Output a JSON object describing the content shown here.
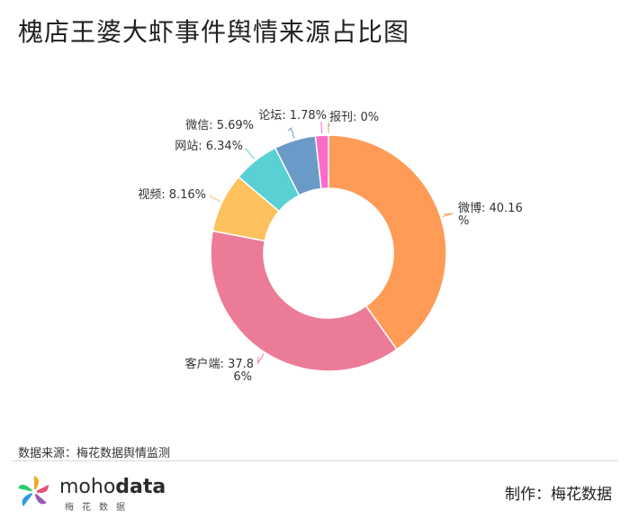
{
  "page": {
    "title": "槐店王婆大虾事件舆情来源占比图",
    "source": "数据来源：梅花数据舆情监测",
    "maker": "制作：梅花数据",
    "logo": {
      "text_light": "moho",
      "text_bold": "data",
      "sub": "梅花数据"
    }
  },
  "chart_data": {
    "type": "pie",
    "title": "槐店王婆大虾事件舆情来源占比图",
    "donut": true,
    "start_angle_deg": 0,
    "clockwise": true,
    "slices": [
      {
        "name": "微博",
        "value": 40.16,
        "label": "微博: 40.16%",
        "color": "#fe9b57"
      },
      {
        "name": "客户端",
        "value": 37.86,
        "label": "客户端: 37.86%",
        "color": "#ec7b98"
      },
      {
        "name": "视频",
        "value": 8.16,
        "label": "视频: 8.16%",
        "color": "#fdc15d"
      },
      {
        "name": "网站",
        "value": 6.34,
        "label": "网站: 6.34%",
        "color": "#59d0d3"
      },
      {
        "name": "微信",
        "value": 5.69,
        "label": "微信: 5.69%",
        "color": "#6a9bc8"
      },
      {
        "name": "论坛",
        "value": 1.78,
        "label": "论坛: 1.78%",
        "color": "#fb6bc9"
      },
      {
        "name": "报刊",
        "value": 0,
        "label": "报刊: 0%",
        "color": "#c9a97a"
      }
    ]
  }
}
